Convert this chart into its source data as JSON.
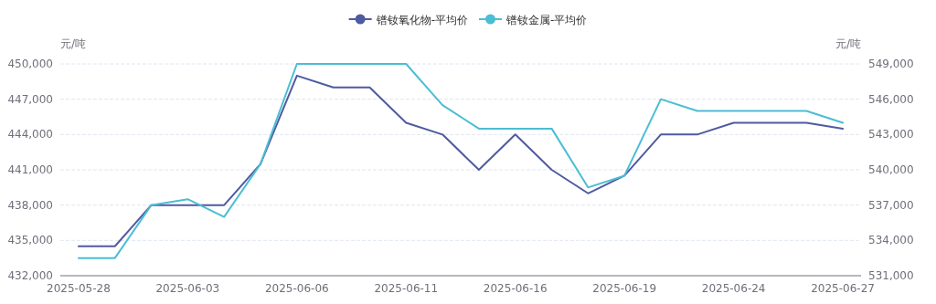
{
  "chart_data": {
    "type": "line",
    "ylabel": "元/吨",
    "y2label": "元/吨",
    "categories": [
      "2025-05-28",
      null,
      null,
      "2025-06-03",
      null,
      null,
      "2025-06-06",
      null,
      null,
      "2025-06-11",
      null,
      null,
      "2025-06-16",
      null,
      null,
      "2025-06-19",
      null,
      null,
      "2025-06-24",
      null,
      null,
      "2025-06-27"
    ],
    "series": [
      {
        "name": "镨钕氧化物-平均价",
        "color": "#4f5aa0",
        "axis": "y",
        "values": [
          434500,
          434500,
          438000,
          438000,
          438000,
          441500,
          449000,
          448000,
          448000,
          445000,
          444000,
          441000,
          444000,
          441000,
          439000,
          440500,
          444000,
          444000,
          445000,
          445000,
          445000,
          444500
        ]
      },
      {
        "name": "镨钕金属-平均价",
        "color": "#4bbdd4",
        "axis": "y2",
        "values": [
          532500,
          532500,
          537000,
          537500,
          536000,
          540500,
          549000,
          549000,
          549000,
          549000,
          545500,
          543500,
          543500,
          543500,
          538500,
          539500,
          546000,
          545000,
          545000,
          545000,
          545000,
          544000
        ]
      }
    ],
    "ylim": [
      432000,
      450000
    ],
    "yticks": [
      {
        "value": 432000,
        "label": "432,000"
      },
      {
        "value": 435000,
        "label": "435,000"
      },
      {
        "value": 438000,
        "label": "438,000"
      },
      {
        "value": 441000,
        "label": "441,000"
      },
      {
        "value": 444000,
        "label": "444,000"
      },
      {
        "value": 447000,
        "label": "447,000"
      },
      {
        "value": 450000,
        "label": "450,000"
      }
    ],
    "y2lim": [
      531000,
      549000
    ],
    "y2ticks": [
      {
        "value": 531000,
        "label": "531,000"
      },
      {
        "value": 534000,
        "label": "534,000"
      },
      {
        "value": 537000,
        "label": "537,000"
      },
      {
        "value": 540000,
        "label": "540,000"
      },
      {
        "value": 543000,
        "label": "543,000"
      },
      {
        "value": 546000,
        "label": "546,000"
      },
      {
        "value": 549000,
        "label": "549,000"
      }
    ],
    "grid": "y",
    "legend": "top",
    "marker": "none",
    "line_style": "solid"
  }
}
